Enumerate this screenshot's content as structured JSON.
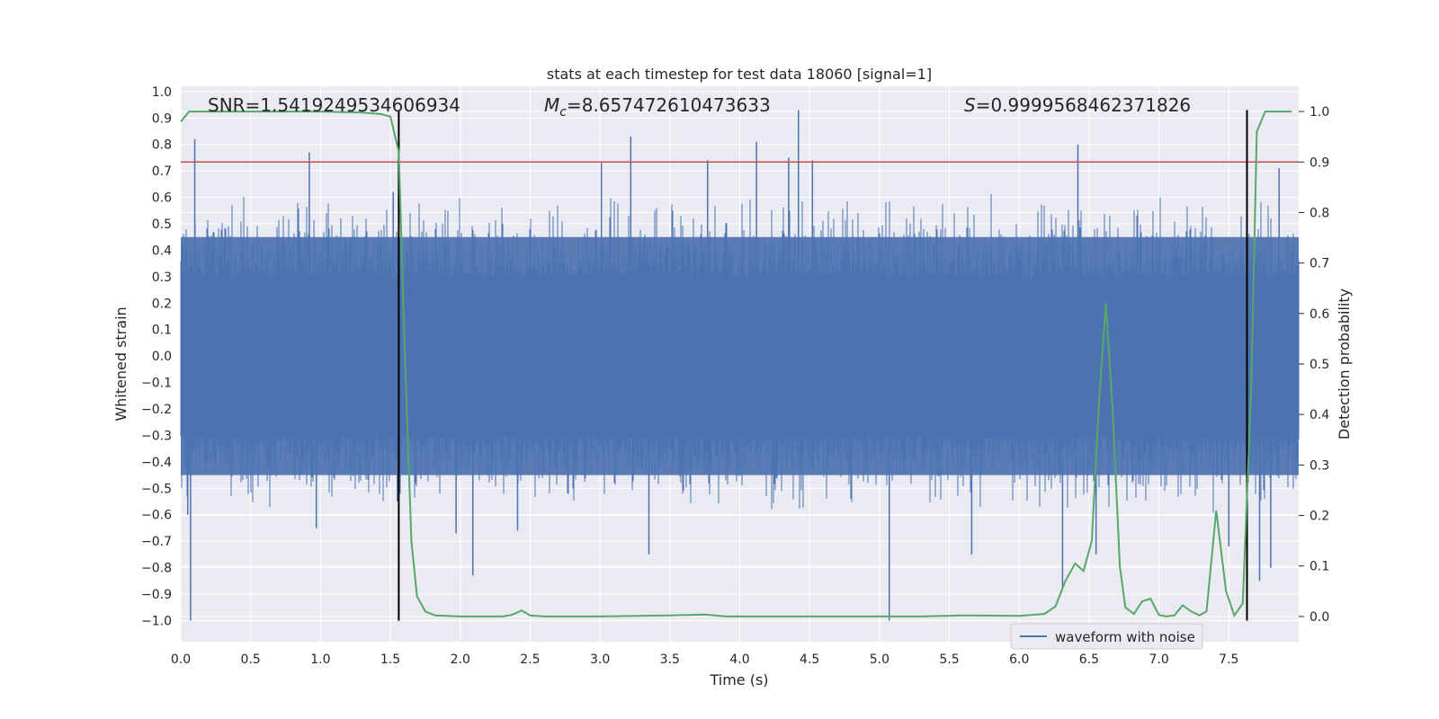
{
  "chart_data": {
    "type": "line",
    "title": "stats at each timestep for test data 18060 [signal=1]",
    "xlabel": "Time (s)",
    "ylabel": "Whitened strain",
    "ylabel_right": "Detection probability",
    "xlim": [
      0.0,
      8.0
    ],
    "ylim": [
      -1.08,
      1.02
    ],
    "ylim_right": [
      -0.05,
      1.05
    ],
    "x_ticks": [
      "0.0",
      "0.5",
      "1.0",
      "1.5",
      "2.0",
      "2.5",
      "3.0",
      "3.5",
      "4.0",
      "4.5",
      "5.0",
      "5.5",
      "6.0",
      "6.5",
      "7.0",
      "7.5"
    ],
    "y_ticks": [
      "1.0",
      "0.9",
      "0.8",
      "0.7",
      "0.6",
      "0.5",
      "0.4",
      "0.3",
      "0.2",
      "0.1",
      "0.0",
      "−0.1",
      "−0.2",
      "−0.3",
      "−0.4",
      "−0.5",
      "−0.6",
      "−0.7",
      "−0.8",
      "−0.9",
      "−1.0"
    ],
    "y_right_ticks": [
      "1.0",
      "0.9",
      "0.8",
      "0.7",
      "0.6",
      "0.5",
      "0.4",
      "0.3",
      "0.2",
      "0.1",
      "0.0"
    ],
    "annotations": {
      "snr": "SNR=1.5419249534606934",
      "mc_symbol": "M",
      "mc_sub": "c",
      "mc_value": "=8.657472610473633",
      "s_symbol": "S",
      "s_value": "=0.9999568462371826"
    },
    "grid": true,
    "legend": {
      "placement": "bottom-right",
      "entries": [
        "waveform with noise"
      ]
    },
    "series": [
      {
        "name": "waveform with noise",
        "color": "#4c72b0",
        "axis": "left",
        "kind": "noise",
        "typical_range": [
          -0.45,
          0.45
        ],
        "spikes": [
          {
            "x": 0.05,
            "y": -0.6
          },
          {
            "x": 0.07,
            "y": -1.0
          },
          {
            "x": 0.1,
            "y": 0.82
          },
          {
            "x": 0.92,
            "y": 0.77
          },
          {
            "x": 0.97,
            "y": -0.65
          },
          {
            "x": 1.52,
            "y": 0.62
          },
          {
            "x": 1.55,
            "y": -0.55
          },
          {
            "x": 1.97,
            "y": -0.67
          },
          {
            "x": 2.09,
            "y": -0.83
          },
          {
            "x": 2.41,
            "y": -0.66
          },
          {
            "x": 3.01,
            "y": 0.73
          },
          {
            "x": 3.22,
            "y": 0.83
          },
          {
            "x": 3.35,
            "y": -0.75
          },
          {
            "x": 3.77,
            "y": 0.74
          },
          {
            "x": 4.12,
            "y": 0.81
          },
          {
            "x": 4.35,
            "y": 0.75
          },
          {
            "x": 4.42,
            "y": 0.93
          },
          {
            "x": 4.52,
            "y": 0.74
          },
          {
            "x": 5.07,
            "y": -1.0
          },
          {
            "x": 5.66,
            "y": -0.75
          },
          {
            "x": 6.31,
            "y": -0.88
          },
          {
            "x": 6.42,
            "y": 0.8
          },
          {
            "x": 6.55,
            "y": -0.75
          },
          {
            "x": 7.63,
            "y": -1.0
          },
          {
            "x": 7.72,
            "y": -0.85
          },
          {
            "x": 7.8,
            "y": -0.8
          },
          {
            "x": 7.86,
            "y": 0.71
          },
          {
            "x": 7.5,
            "y": -0.72
          }
        ]
      },
      {
        "name": "detection probability",
        "color": "#55a868",
        "axis": "right",
        "points": [
          [
            0.0,
            0.98
          ],
          [
            0.06,
            1.0
          ],
          [
            0.3,
            1.0
          ],
          [
            0.6,
            1.0
          ],
          [
            1.0,
            1.0
          ],
          [
            1.3,
            0.998
          ],
          [
            1.43,
            0.995
          ],
          [
            1.5,
            0.99
          ],
          [
            1.56,
            0.92
          ],
          [
            1.6,
            0.55
          ],
          [
            1.65,
            0.15
          ],
          [
            1.69,
            0.04
          ],
          [
            1.75,
            0.01
          ],
          [
            1.82,
            0.002
          ],
          [
            2.0,
            0.0
          ],
          [
            2.3,
            0.0
          ],
          [
            2.37,
            0.003
          ],
          [
            2.44,
            0.012
          ],
          [
            2.5,
            0.002
          ],
          [
            2.6,
            0.0
          ],
          [
            3.0,
            0.0
          ],
          [
            3.5,
            0.002
          ],
          [
            3.75,
            0.004
          ],
          [
            3.9,
            0.0
          ],
          [
            4.5,
            0.0
          ],
          [
            5.0,
            0.0
          ],
          [
            5.3,
            0.0
          ],
          [
            5.6,
            0.002
          ],
          [
            6.0,
            0.001
          ],
          [
            6.18,
            0.005
          ],
          [
            6.26,
            0.02
          ],
          [
            6.33,
            0.07
          ],
          [
            6.4,
            0.105
          ],
          [
            6.46,
            0.09
          ],
          [
            6.52,
            0.15
          ],
          [
            6.57,
            0.42
          ],
          [
            6.62,
            0.62
          ],
          [
            6.67,
            0.4
          ],
          [
            6.72,
            0.1
          ],
          [
            6.76,
            0.018
          ],
          [
            6.82,
            0.005
          ],
          [
            6.88,
            0.03
          ],
          [
            6.94,
            0.035
          ],
          [
            7.0,
            0.003
          ],
          [
            7.05,
            0.0
          ],
          [
            7.11,
            0.002
          ],
          [
            7.17,
            0.022
          ],
          [
            7.23,
            0.01
          ],
          [
            7.29,
            0.002
          ],
          [
            7.34,
            0.01
          ],
          [
            7.41,
            0.21
          ],
          [
            7.48,
            0.05
          ],
          [
            7.54,
            0.002
          ],
          [
            7.6,
            0.026
          ],
          [
            7.66,
            0.45
          ],
          [
            7.7,
            0.96
          ],
          [
            7.76,
            1.0
          ],
          [
            7.95,
            1.0
          ]
        ]
      }
    ],
    "threshold": {
      "axis": "right",
      "value": 0.9,
      "color": "#c44e52"
    },
    "markers": {
      "x": [
        1.56,
        7.63
      ],
      "color": "#000000",
      "y_range": [
        -1.0,
        0.93
      ]
    }
  }
}
